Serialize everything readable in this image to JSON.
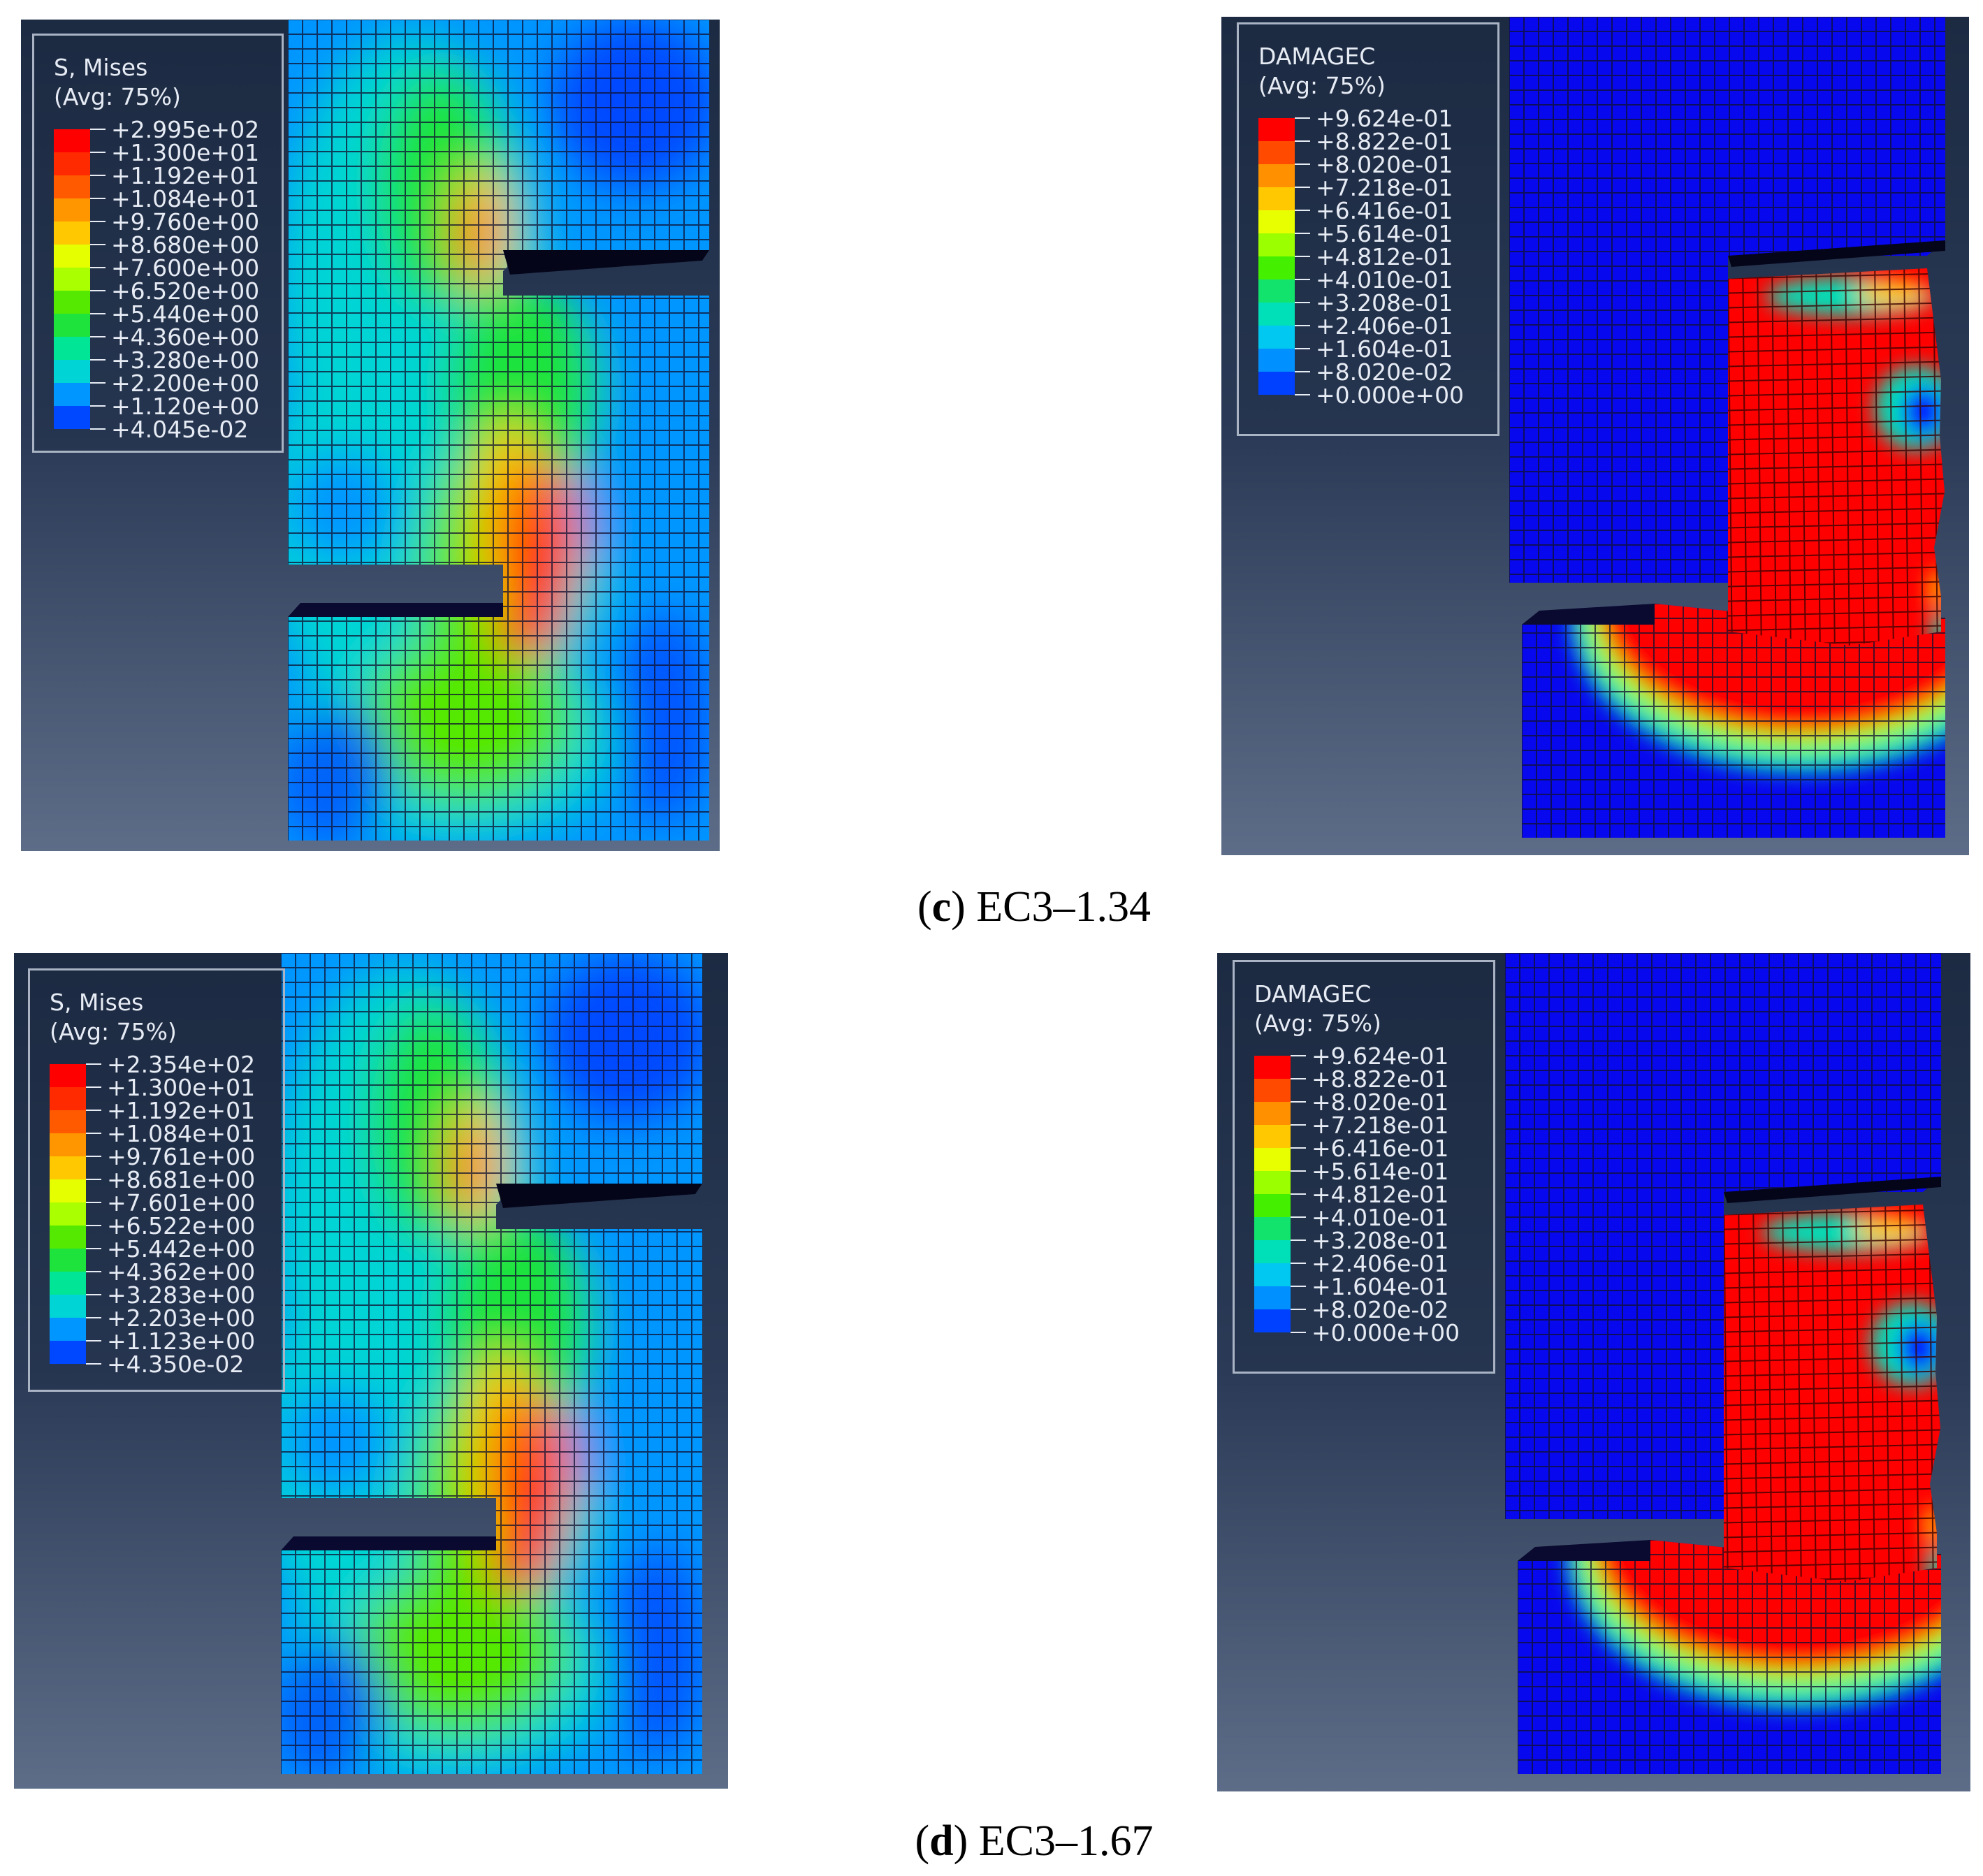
{
  "captions": [
    {
      "letter": "c",
      "text": "EC3–1.34"
    },
    {
      "letter": "d",
      "text": "EC3–1.67"
    }
  ],
  "panels": [
    {
      "kind": "stress",
      "legend_title": [
        "S, Mises",
        "(Avg: 75%)"
      ],
      "legend_values": [
        "+2.995e+02",
        "+1.300e+01",
        "+1.192e+01",
        "+1.084e+01",
        "+9.760e+00",
        "+8.680e+00",
        "+7.600e+00",
        "+6.520e+00",
        "+5.440e+00",
        "+4.360e+00",
        "+3.280e+00",
        "+2.200e+00",
        "+1.120e+00",
        "+4.045e-02"
      ]
    },
    {
      "kind": "damage",
      "legend_title": [
        "DAMAGEC",
        "(Avg: 75%)"
      ],
      "legend_values": [
        "+9.624e-01",
        "+8.822e-01",
        "+8.020e-01",
        "+7.218e-01",
        "+6.416e-01",
        "+5.614e-01",
        "+4.812e-01",
        "+4.010e-01",
        "+3.208e-01",
        "+2.406e-01",
        "+1.604e-01",
        "+8.020e-02",
        "+0.000e+00"
      ]
    },
    {
      "kind": "stress",
      "legend_title": [
        "S, Mises",
        "(Avg: 75%)"
      ],
      "legend_values": [
        "+2.354e+02",
        "+1.300e+01",
        "+1.192e+01",
        "+1.084e+01",
        "+9.761e+00",
        "+8.681e+00",
        "+7.601e+00",
        "+6.522e+00",
        "+5.442e+00",
        "+4.362e+00",
        "+3.283e+00",
        "+2.203e+00",
        "+1.123e+00",
        "+4.350e-02"
      ]
    },
    {
      "kind": "damage",
      "legend_title": [
        "DAMAGEC",
        "(Avg: 75%)"
      ],
      "legend_values": [
        "+9.624e-01",
        "+8.822e-01",
        "+8.020e-01",
        "+7.218e-01",
        "+6.416e-01",
        "+5.614e-01",
        "+4.812e-01",
        "+4.010e-01",
        "+3.208e-01",
        "+2.406e-01",
        "+1.604e-01",
        "+8.020e-02",
        "+0.000e+00"
      ]
    }
  ],
  "colors": {
    "bg_top": "#1c2a42",
    "bg_bottom": "#5d6d88",
    "stress_scale": [
      "#ff0000",
      "#ff2a00",
      "#ff5a00",
      "#ff9600",
      "#ffc800",
      "#e6ff00",
      "#aaff00",
      "#55e800",
      "#1ee33c",
      "#00e696",
      "#00d4d4",
      "#0096ff",
      "#0048ff",
      "#0000ff"
    ],
    "damage_scale": [
      "#ff0000",
      "#ff4a00",
      "#ff9000",
      "#ffc800",
      "#e8ff00",
      "#9bff00",
      "#44f000",
      "#11e36c",
      "#00e0b8",
      "#00c8f0",
      "#0090ff",
      "#0040ff",
      "#0000ff"
    ]
  }
}
